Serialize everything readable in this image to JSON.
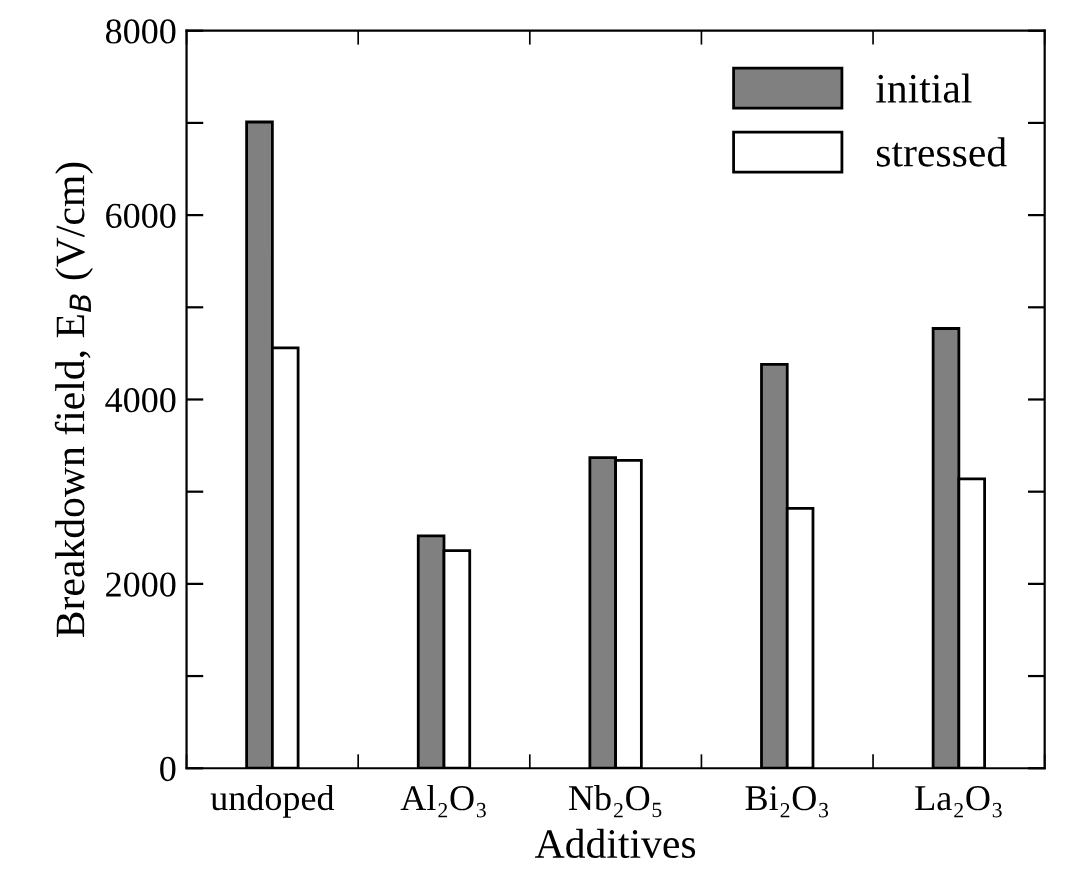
{
  "chart_data": {
    "type": "bar",
    "xlabel": "Additives",
    "ylabel": "Breakdown field, E$_{B}$ (V/cm)",
    "categories": [
      "undoped",
      "Al₂O₃",
      "Nb₂O₅",
      "Bi₂O₃",
      "La₂O₃"
    ],
    "series": [
      {
        "name": "initial",
        "color": "#808080",
        "values": [
          7010,
          2520,
          3370,
          4380,
          4770
        ]
      },
      {
        "name": "stressed",
        "color": "#ffffff",
        "values": [
          4560,
          2360,
          3340,
          2820,
          3140
        ]
      }
    ],
    "ylim": [
      0,
      8000
    ],
    "yticks": [
      0,
      {
        "value": 1000,
        "label": null
      },
      2000,
      {
        "value": 3000,
        "label": null
      },
      4000,
      {
        "value": 5000,
        "label": null
      },
      6000,
      {
        "value": 7000,
        "label": null
      },
      8000
    ],
    "legend": "top right",
    "grid": false
  }
}
